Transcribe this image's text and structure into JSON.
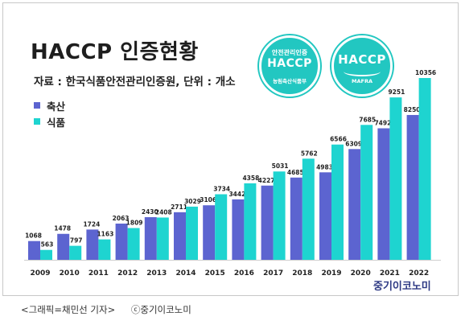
{
  "title": "HACCP 인증현황",
  "source": "자료 : 한국식품안전관리인증원, 단위 : 개소",
  "legend": [
    {
      "label": "축산",
      "color": "#5c64d0"
    },
    {
      "label": "식품",
      "color": "#1ed4d0"
    }
  ],
  "badge_left": {
    "top_text": "안전관리인증",
    "main_text": "HACCP",
    "bottom_text": "농림축산식품부",
    "color": "#22c7c1"
  },
  "badge_right": {
    "main_text": "HACCP",
    "bottom_text": "MAFRA",
    "color": "#22c7c1"
  },
  "brand": "중기이코노미",
  "caption": {
    "credit": "<그래픽=채민선 기자>",
    "copyright": "ⓒ중기이코노미"
  },
  "chart_data": {
    "type": "bar",
    "title": "HACCP 인증현황",
    "categories": [
      "2009",
      "2010",
      "2011",
      "2012",
      "2013",
      "2014",
      "2015",
      "2016",
      "2017",
      "2018",
      "2019",
      "2020",
      "2021",
      "2022"
    ],
    "series": [
      {
        "name": "축산",
        "color": "#5c64d0",
        "values": [
          1068,
          1478,
          1724,
          2063,
          2430,
          2711,
          3106,
          3442,
          4227,
          4685,
          4983,
          6309,
          7492,
          8250
        ]
      },
      {
        "name": "식품",
        "color": "#1ed4d0",
        "values": [
          563,
          797,
          1163,
          1809,
          2408,
          3029,
          3734,
          4358,
          5031,
          5762,
          6566,
          7685,
          9251,
          10356
        ]
      }
    ],
    "ylim": [
      0,
      10356
    ],
    "grid": false,
    "legend_position": "top-left"
  }
}
